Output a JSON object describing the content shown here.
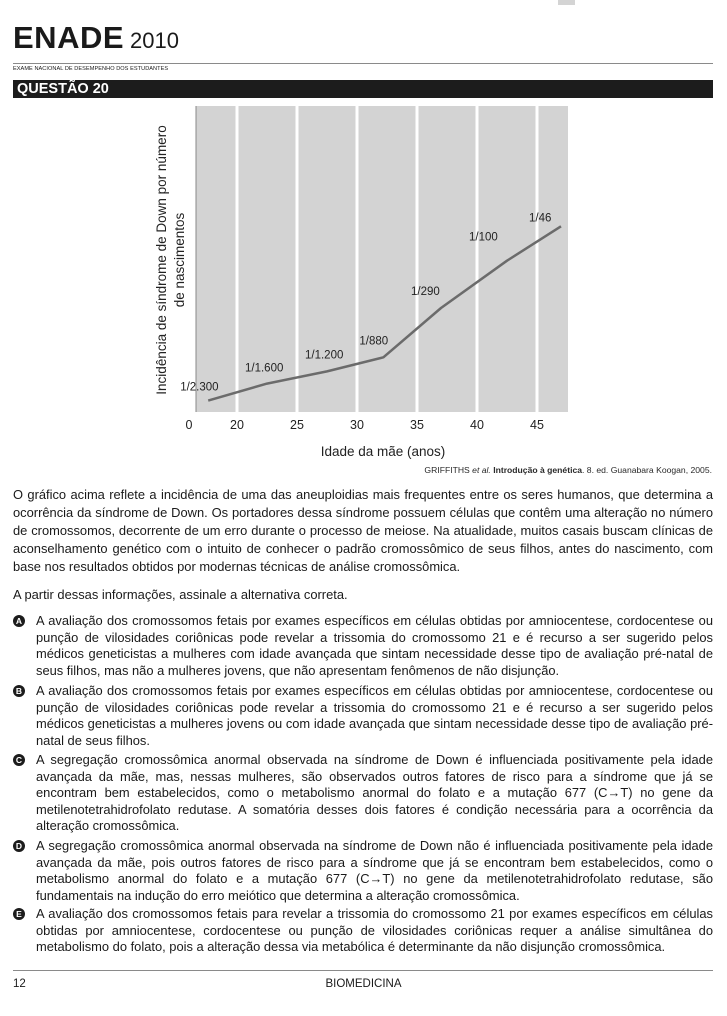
{
  "header": {
    "logo_text": "ENADE",
    "year": "2010",
    "subtitle": "EXAME NACIONAL DE DESEMPENHO DOS ESTUDANTES"
  },
  "question": {
    "title": "QUESTÃO 20"
  },
  "chart_data": {
    "type": "line",
    "xlabel": "Idade da mãe (anos)",
    "ylabel": "Incidência de síndrome de Down por número de nascimentos",
    "ylabel_lines": [
      "Incidência de síndrome de Down por número",
      "de nascimentos"
    ],
    "x_origin_label": "0",
    "xticks": [
      20,
      25,
      30,
      35,
      40,
      45
    ],
    "xlim": [
      15,
      47
    ],
    "gridlines_x": [
      20,
      25,
      30,
      35,
      40,
      45
    ],
    "points": [
      {
        "x": 17.6,
        "y": 0.00043
      },
      {
        "x": 22.5,
        "y": 0.00063
      },
      {
        "x": 27.5,
        "y": 0.00083
      },
      {
        "x": 32.2,
        "y": 0.00114
      },
      {
        "x": 37.0,
        "y": 0.00345
      },
      {
        "x": 42.5,
        "y": 0.01
      },
      {
        "x": 47.0,
        "y": 0.0217
      }
    ],
    "annotations": [
      {
        "text": "1/2.300",
        "x": 17.6
      },
      {
        "text": "1/1.600",
        "x": 22.5
      },
      {
        "text": "1/1.200",
        "x": 27.5
      },
      {
        "text": "1/880",
        "x": 32.2
      },
      {
        "text": "1/290",
        "x": 37.0
      },
      {
        "text": "1/100",
        "x": 42.5
      },
      {
        "text": "1/46",
        "x": 47.0
      }
    ],
    "background_color": "#d3d3d3",
    "line_color": "#6b6b6b"
  },
  "source": {
    "author": "GRIFFITHS ",
    "etal": "et al.",
    "title": " Introdução à genética",
    "rest": ". 8. ed. Guanabara Koogan, 2005."
  },
  "body_text": "O gráfico acima reflete a incidência de uma das aneuploidias mais frequentes entre os seres humanos, que determina a ocorrência da síndrome de Down. Os portadores dessa síndrome possuem células que contêm uma alteração no número de cromossomos, decorrente de um erro durante o processo de meiose. Na atualidade, muitos casais buscam clínicas de aconselhamento genético com o intuito de conhecer o padrão cromossômico de seus filhos, antes do nascimento, com base nos resultados obtidos por modernas técnicas de análise cromossômica.",
  "prompt": "A partir dessas informações, assinale a alternativa correta.",
  "options": [
    {
      "letter": "A",
      "text": "A avaliação dos cromossomos fetais por exames específicos em células obtidas por amniocentese, cordocentese ou punção de vilosidades coriônicas pode revelar a trissomia do cromossomo 21 e é recurso a ser sugerido pelos médicos geneticistas a mulheres com idade avançada que sintam necessidade desse tipo de avaliação pré-natal de seus filhos, mas não a mulheres jovens, que não apresentam fenômenos de não disjunção."
    },
    {
      "letter": "B",
      "text": "A avaliação dos cromossomos fetais por exames específicos em células obtidas por amniocentese, cordocentese ou punção de vilosidades coriônicas pode revelar a trissomia do cromossomo 21 e é recurso a ser sugerido pelos médicos geneticistas a mulheres jovens ou com idade avançada que sintam necessidade desse tipo de avaliação pré-natal de seus filhos."
    },
    {
      "letter": "C",
      "text": "A segregação cromossômica anormal observada na síndrome de Down é influenciada positivamente pela idade avançada da mãe, mas, nessas mulheres, são observados outros fatores de risco para a síndrome que já se encontram bem estabelecidos, como o metabolismo anormal do folato e a mutação 677 (C→T) no gene da metilenotetrahidrofolato redutase. A somatória desses dois fatores é condição necessária para a ocorrência da alteração cromossômica."
    },
    {
      "letter": "D",
      "text": "A segregação cromossômica anormal observada na síndrome de Down não é influenciada positivamente pela idade avançada da mãe, pois outros fatores de risco para a síndrome que já se encontram bem estabelecidos, como o metabolismo anormal do folato e a mutação 677 (C→T) no gene da metilenotetrahidrofolato redutase, são fundamentais na indução do erro meiótico que determina a alteração cromossômica."
    },
    {
      "letter": "E",
      "text": "A avaliação dos cromossomos fetais para revelar a trissomia do cromossomo 21 por exames específicos em células obtidas por amniocentese, cordocentese ou punção de vilosidades coriônicas requer a análise simultânea do metabolismo do folato, pois a alteração dessa via metabólica é determinante da não disjunção cromossômica."
    }
  ],
  "footer": {
    "page_number": "12",
    "course": "BIOMEDICINA"
  }
}
